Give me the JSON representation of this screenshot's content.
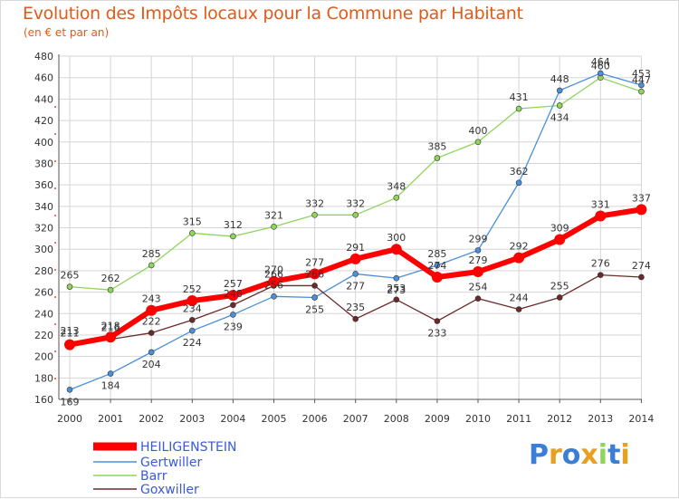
{
  "chart_data": {
    "type": "line",
    "title": "Evolution des Impôts locaux pour la Commune par Habitant",
    "subtitle": "(en € et par an)",
    "xlabel": "",
    "ylabel": "",
    "x": [
      "2000",
      "2001",
      "2002",
      "2003",
      "2004",
      "2005",
      "2006",
      "2007",
      "2008",
      "2009",
      "2010",
      "2011",
      "2012",
      "2013",
      "2014"
    ],
    "ylim": [
      160,
      480
    ],
    "yticks": [
      160,
      180,
      200,
      220,
      240,
      260,
      280,
      300,
      320,
      340,
      360,
      380,
      400,
      420,
      440,
      460,
      480
    ],
    "grid": true,
    "legend_position": "bottom-left",
    "series": [
      {
        "name": "HEILIGENSTEIN",
        "color": "#ff0000",
        "values": [
          211,
          218,
          243,
          252,
          257,
          270,
          277,
          291,
          300,
          274,
          279,
          292,
          309,
          331,
          337
        ]
      },
      {
        "name": "Gertwiller",
        "color": "#4a90d9",
        "values": [
          169,
          184,
          204,
          224,
          239,
          256,
          255,
          277,
          273,
          285,
          299,
          362,
          448,
          464,
          453
        ]
      },
      {
        "name": "Barr",
        "color": "#8ed55a",
        "values": [
          265,
          262,
          285,
          315,
          312,
          321,
          332,
          332,
          348,
          385,
          400,
          431,
          434,
          460,
          447
        ]
      },
      {
        "name": "Goxwiller",
        "color": "#6b2a2a",
        "values": [
          213,
          216,
          222,
          234,
          248,
          266,
          266,
          235,
          253,
          233,
          254,
          244,
          255,
          276,
          274
        ]
      }
    ]
  },
  "logo": {
    "letters": [
      "P",
      "r",
      "o",
      "x",
      "i",
      "t",
      "i"
    ],
    "colors": [
      "#3a7fd5",
      "#e8a020",
      "#3a7fd5",
      "#e8a020",
      "#8ed55a",
      "#3a7fd5",
      "#e8a020"
    ]
  }
}
